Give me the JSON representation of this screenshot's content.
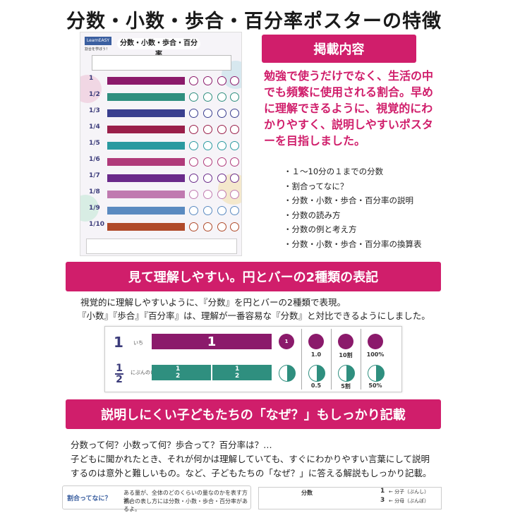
{
  "title": "分数・小数・歩合・百分率ポスターの特徴",
  "poster": {
    "badge": "LearnEASY",
    "subtitle": "割合を学ぼう！",
    "heading": "分数・小数・歩合・百分率",
    "row_numbers": [
      "1",
      "1/2",
      "1/3",
      "1/4",
      "1/5",
      "1/6",
      "1/7",
      "1/8",
      "1/9",
      "1/10"
    ],
    "row_colors": [
      "#8b1a6b",
      "#2f8f7f",
      "#3a3f8f",
      "#9a1f4a",
      "#2a9aa0",
      "#b03a7a",
      "#6a2a8a",
      "#c07ab0",
      "#5a8ac0",
      "#b04a2a"
    ]
  },
  "section1": {
    "heading": "掲載内容",
    "lead": "勉強で使うだけでなく、生活の中でも頻繁に使用される割合。早めに理解できるように、視覚的にわかりやすく、説明しやすいポスターを目指しました。",
    "bullets": [
      "１〜10分の１までの分数",
      "割合ってなに？",
      "分数・小数・歩合・百分率の説明",
      "分数の読み方",
      "分数の例と考え方",
      "分数・小数・歩合・百分率の換算表"
    ]
  },
  "section2": {
    "heading": "見て理解しやすい。円とバーの2種類の表記",
    "line1": "視覚的に理解しやすいように、『分数』を円とバーの2種類で表現。",
    "line2": "『小数』『歩合』『百分率』は、理解が一番容易な『分数』と対比できるようにしました。"
  },
  "example": {
    "row1": {
      "number": "1",
      "reading": "いち",
      "bar_label": "1",
      "circle": "1",
      "decimal": "1.0",
      "wari": "10割",
      "percent": "100%"
    },
    "row2": {
      "number": "1/2",
      "reading": "にぶんのいち",
      "bar_label": "1/2",
      "decimal": "0.5",
      "wari": "5割",
      "percent": "50%"
    },
    "colors": {
      "row1": "#8b1a6b",
      "row2": "#2f8f7f"
    }
  },
  "section3": {
    "heading": "説明しにくい子どもたちの「なぜ？」もしっかり記載",
    "line1": "分数って何？小数って何？歩合って？百分率は？…",
    "line2": "子どもに聞かれたとき、それが何かは理解していても、すぐにわかりやすい言葉にして説明",
    "line3": "するのは意外と難しいもの。など、子どもたちの「なぜ？」に答える解説もしっかり記載。"
  },
  "bottom": {
    "box1_label": "割合ってなに？",
    "box1_text1": "ある量が、全体のどのくらいの量なのかを表す方法。",
    "box1_text2": "割合の表し方には分数・小数・歩合・百分率があるよ。",
    "box2_label": "分数",
    "box3_num": "1",
    "box3_den": "3",
    "box3_bunshi": "← 分子（ぶんし）",
    "box3_bunbo": "← 分母（ぶんぼ）"
  },
  "accent_color": "#d01e6b"
}
